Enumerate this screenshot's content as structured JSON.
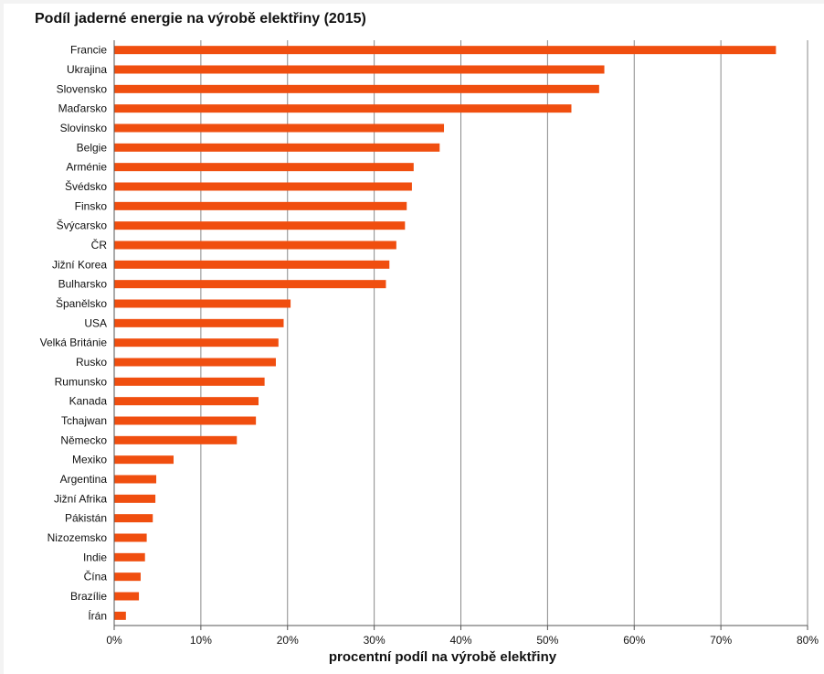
{
  "chart_data": {
    "type": "bar",
    "orientation": "horizontal",
    "title": "Podíl jaderné energie na výrobě elektřiny (2015)",
    "xlabel": "procentní podíl na výrobě elektřiny",
    "ylabel": "",
    "xlim": [
      0,
      80
    ],
    "x_tick_labels": [
      "0%",
      "10%",
      "20%",
      "30%",
      "40%",
      "50%",
      "60%",
      "70%",
      "80%"
    ],
    "grid": "vertical",
    "legend": "none",
    "bar_color": "#f04e0f",
    "categories": [
      "Francie",
      "Ukrajina",
      "Slovensko",
      "Maďarsko",
      "Slovinsko",
      "Belgie",
      "Arménie",
      "Švédsko",
      "Finsko",
      "Švýcarsko",
      "ČR",
      "Jižní Korea",
      "Bulharsko",
      "Španělsko",
      "USA",
      "Velká Británie",
      "Rusko",
      "Rumunsko",
      "Kanada",
      "Tchajwan",
      "Německo",
      "Mexiko",
      "Argentina",
      "Jižní Afrika",
      "Pákistán",
      "Nizozemsko",
      "Indie",
      "Čína",
      "Brazílie",
      "Írán"
    ],
    "values": [
      76.3,
      56.5,
      55.9,
      52.7,
      38.0,
      37.5,
      34.5,
      34.3,
      33.7,
      33.5,
      32.5,
      31.7,
      31.3,
      20.3,
      19.5,
      18.9,
      18.6,
      17.3,
      16.6,
      16.3,
      14.1,
      6.8,
      4.8,
      4.7,
      4.4,
      3.7,
      3.5,
      3.0,
      2.8,
      1.3
    ]
  }
}
